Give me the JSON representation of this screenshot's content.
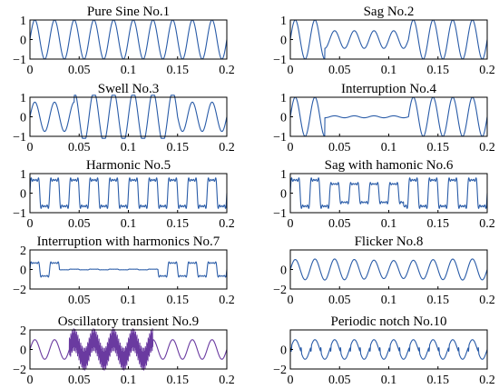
{
  "chart_data": [
    {
      "type": "line",
      "title": "Pure Sine No.1",
      "signal": "pure_sine",
      "xlim": [
        0,
        0.2
      ],
      "ylim": [
        -1,
        1
      ],
      "xticks": [
        "0",
        "0.05",
        "0.1",
        "0.15",
        "0.2"
      ],
      "yticks": [
        "1",
        "0",
        "−1"
      ],
      "color": "#2a5ca8",
      "params": {
        "frequency_hz": 50,
        "amplitude": 1
      }
    },
    {
      "type": "line",
      "title": "Sag No.2",
      "signal": "sag",
      "xlim": [
        0,
        0.2
      ],
      "ylim": [
        -1,
        1
      ],
      "xticks": [
        "0",
        "0.05",
        "0.1",
        "0.15",
        "0.2"
      ],
      "yticks": [
        "1",
        "0",
        "−1"
      ],
      "color": "#2a5ca8",
      "params": {
        "frequency_hz": 50,
        "amplitude": 1,
        "event_start": 0.035,
        "event_end": 0.12,
        "event_amplitude": 0.45
      }
    },
    {
      "type": "line",
      "title": "Swell No.3",
      "signal": "swell",
      "xlim": [
        0,
        0.2
      ],
      "ylim": [
        -1,
        1
      ],
      "xticks": [
        "0",
        "0.05",
        "0.1",
        "0.15",
        "0.2"
      ],
      "yticks": [
        "1",
        "0",
        "−1"
      ],
      "color": "#2a5ca8",
      "params": {
        "frequency_hz": 50,
        "amplitude": 0.75,
        "event_start": 0.045,
        "event_end": 0.15,
        "event_amplitude": 1.3
      }
    },
    {
      "type": "line",
      "title": "Interruption No.4",
      "signal": "interruption",
      "xlim": [
        0,
        0.2
      ],
      "ylim": [
        -1,
        1
      ],
      "xticks": [
        "0",
        "0.05",
        "0.1",
        "0.15",
        "0.2"
      ],
      "yticks": [
        "1",
        "0",
        "−1"
      ],
      "color": "#2a5ca8",
      "params": {
        "frequency_hz": 50,
        "amplitude": 1,
        "event_start": 0.035,
        "event_end": 0.12,
        "event_amplitude": 0.05
      }
    },
    {
      "type": "line",
      "title": "Harmonic No.5",
      "signal": "harmonic",
      "xlim": [
        0,
        0.2
      ],
      "ylim": [
        -1,
        1
      ],
      "xticks": [
        "0",
        "0.05",
        "0.1",
        "0.15",
        "0.2"
      ],
      "yticks": [
        "1",
        "0",
        "−1"
      ],
      "color": "#2a5ca8",
      "params": {
        "frequency_hz": 50,
        "amplitude": 1
      }
    },
    {
      "type": "line",
      "title": "Sag with hamonic No.6",
      "signal": "sag_harmonic",
      "xlim": [
        0,
        0.2
      ],
      "ylim": [
        -1,
        1
      ],
      "xticks": [
        "0",
        "0.05",
        "0.1",
        "0.15",
        "0.2"
      ],
      "yticks": [
        "1",
        "0",
        "−1"
      ],
      "color": "#2a5ca8",
      "params": {
        "frequency_hz": 50,
        "amplitude": 1,
        "event_start": 0.04,
        "event_end": 0.115,
        "event_amplitude": 0.7
      }
    },
    {
      "type": "line",
      "title": "Interruption with harmonics No.7",
      "signal": "interruption_harmonic",
      "xlim": [
        0,
        0.2
      ],
      "ylim": [
        -2,
        2
      ],
      "xticks": [
        "0.05",
        "0.1",
        "0.15",
        "0.2"
      ],
      "yticks": [
        "2",
        "0",
        "−2"
      ],
      "color": "#2a5ca8",
      "params": {
        "frequency_hz": 50,
        "amplitude": 1,
        "event_start": 0.03,
        "event_end": 0.13,
        "event_amplitude": 0.05
      }
    },
    {
      "type": "line",
      "title": "Flicker No.8",
      "signal": "flicker",
      "xlim": [
        0,
        0.2
      ],
      "ylim": [
        -2,
        2
      ],
      "xticks": [
        "0",
        "0.05",
        "0.1",
        "0.15",
        "0.2"
      ],
      "yticks": [
        "0",
        "−2"
      ],
      "color": "#2a5ca8",
      "params": {
        "frequency_hz": 50,
        "amplitude": 1
      }
    },
    {
      "type": "line",
      "title": "Oscillatory transient No.9",
      "signal": "oscillatory",
      "xlim": [
        0,
        0.2
      ],
      "ylim": [
        -2,
        2
      ],
      "xticks": [
        "0",
        "0.05",
        "0.1",
        "0.15",
        "0.2"
      ],
      "yticks": [
        "2",
        "0",
        "−2"
      ],
      "color": "#6a3aa0",
      "params": {
        "frequency_hz": 50,
        "amplitude": 1,
        "event_start": 0.04,
        "event_end": 0.125
      }
    },
    {
      "type": "line",
      "title": "Periodic notch No.10",
      "signal": "notch",
      "xlim": [
        0,
        0.2
      ],
      "ylim": [
        -2,
        2
      ],
      "xticks": [
        "0",
        "0.05",
        "0.1",
        "0.15",
        "0.2"
      ],
      "yticks": [
        "0",
        "−2"
      ],
      "color": "#2a5ca8",
      "params": {
        "frequency_hz": 50,
        "amplitude": 1
      }
    }
  ]
}
